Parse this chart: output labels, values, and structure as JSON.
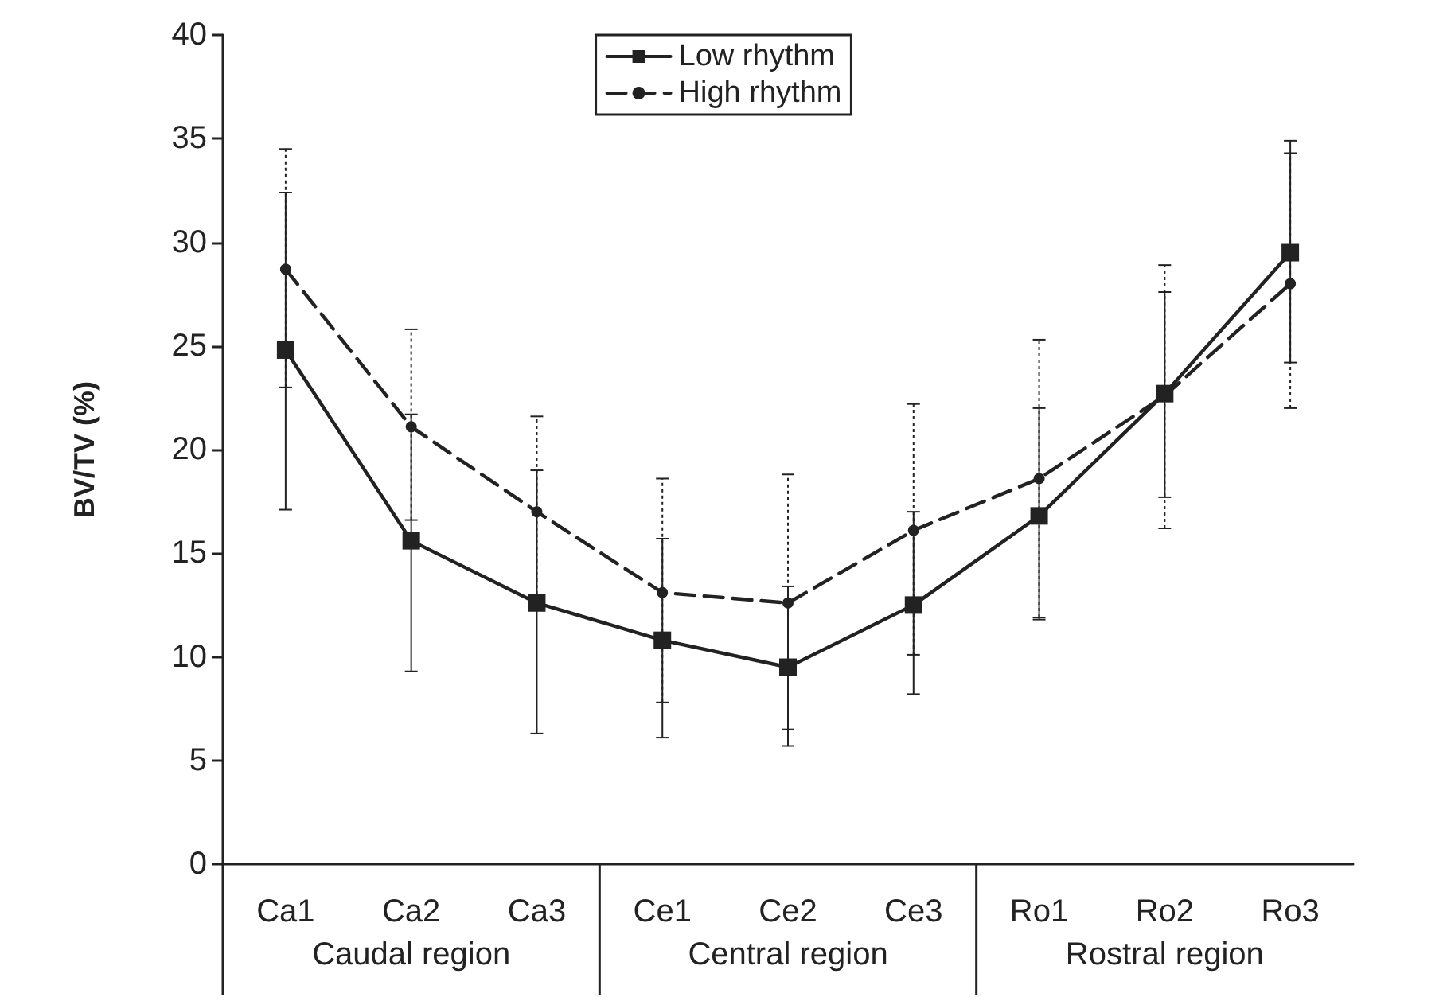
{
  "chart_data": {
    "type": "line",
    "ylabel": "BV/TV (%)",
    "categories": [
      "Ca1",
      "Ca2",
      "Ca3",
      "Ce1",
      "Ce2",
      "Ce3",
      "Ro1",
      "Ro2",
      "Ro3"
    ],
    "series": [
      {
        "name": "Low rhythm",
        "color": "#222222",
        "marker": "square",
        "line_style": "solid",
        "values": [
          24.8,
          15.6,
          12.6,
          10.8,
          9.5,
          12.5,
          16.8,
          22.7,
          29.5
        ],
        "errors": [
          [
            17.1,
            32.4
          ],
          [
            9.3,
            21.7
          ],
          [
            6.3,
            19.0
          ],
          [
            6.1,
            15.7
          ],
          [
            5.7,
            13.4
          ],
          [
            8.2,
            17.0
          ],
          [
            11.8,
            22.0
          ],
          [
            17.7,
            27.6
          ],
          [
            24.2,
            34.9
          ]
        ]
      },
      {
        "name": "High rhythm",
        "color": "#222222",
        "marker": "circle",
        "line_style": "dashed",
        "values": [
          28.7,
          21.1,
          17.0,
          13.1,
          12.6,
          16.1,
          18.6,
          22.6,
          28.0
        ],
        "errors": [
          [
            23.0,
            34.5
          ],
          [
            16.6,
            25.8
          ],
          [
            12.4,
            21.6
          ],
          [
            7.8,
            18.6
          ],
          [
            6.5,
            18.8
          ],
          [
            10.1,
            22.2
          ],
          [
            11.9,
            25.3
          ],
          [
            16.2,
            28.9
          ],
          [
            22.0,
            34.3
          ]
        ]
      }
    ],
    "annotations": [
      "Caudal region",
      "Central region",
      "Rostral region"
    ],
    "ylim": [
      0,
      40
    ],
    "yticks": [
      0,
      5,
      10,
      15,
      20,
      25,
      30,
      35,
      40
    ],
    "grid": false,
    "legend": "top"
  }
}
